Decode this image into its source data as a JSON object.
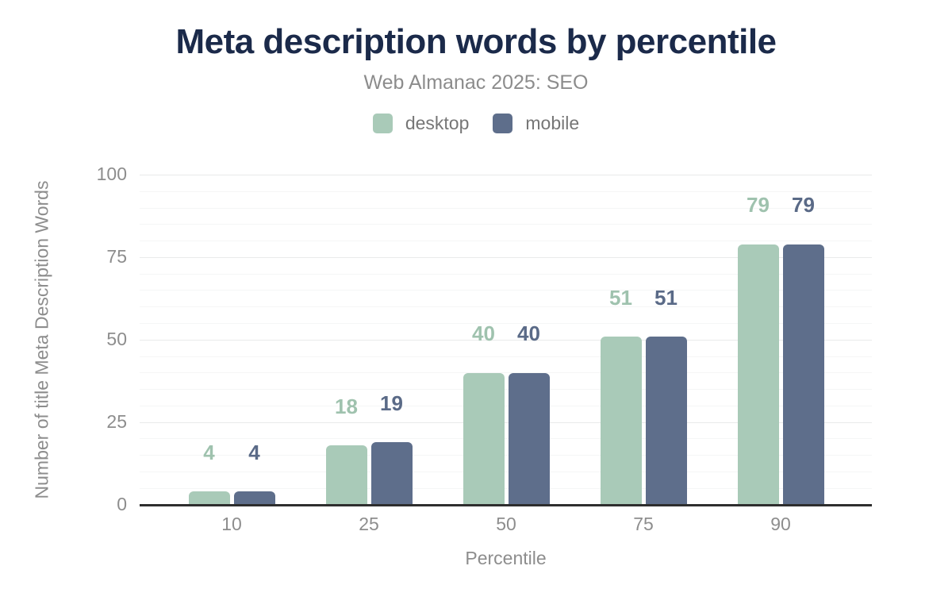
{
  "title": "Meta description words by percentile",
  "subtitle": "Web Almanac 2025: SEO",
  "legend": {
    "items": [
      {
        "label": "desktop",
        "color": "#a9cab8"
      },
      {
        "label": "mobile",
        "color": "#5e6e8b"
      }
    ]
  },
  "colors": {
    "title": "#1b2a4a",
    "subtitle_text": "#8c8c8c",
    "axis_text": "#8d8d8d",
    "axis_line": "#2e2e2e",
    "desktop_bar": "#a9cab8",
    "desktop_label": "#9fc2ae",
    "mobile_bar": "#5e6e8b",
    "mobile_label": "#5a6a87",
    "major_gridline": "#e9eaea",
    "minor_gridline": "#f5f6f6"
  },
  "chart_data": {
    "type": "bar",
    "title": "Meta description words by percentile",
    "subtitle": "Web Almanac 2025: SEO",
    "categories": [
      "10",
      "25",
      "50",
      "75",
      "90"
    ],
    "series": [
      {
        "name": "desktop",
        "color": "#a9cab8",
        "label_color": "#9fc2ae",
        "values": [
          4,
          18,
          40,
          51,
          79
        ]
      },
      {
        "name": "mobile",
        "color": "#5e6e8b",
        "label_color": "#5a6a87",
        "values": [
          4,
          19,
          40,
          51,
          79
        ]
      }
    ],
    "xlabel": "Percentile",
    "ylabel": "Number of title Meta Description Words",
    "ylim": [
      0,
      100
    ],
    "yticks": [
      0,
      25,
      50,
      75,
      100
    ],
    "minor_grid_step": 5,
    "grid": true,
    "legend_position": "top",
    "bar_value_labels": true
  }
}
